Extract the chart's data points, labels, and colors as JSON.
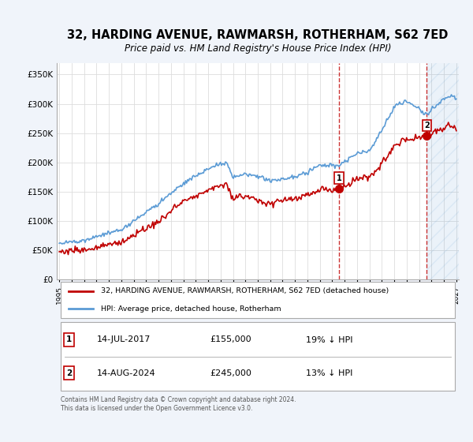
{
  "title": "32, HARDING AVENUE, RAWMARSH, ROTHERHAM, S62 7ED",
  "subtitle": "Price paid vs. HM Land Registry's House Price Index (HPI)",
  "footnote": "Contains HM Land Registry data © Crown copyright and database right 2024.\nThis data is licensed under the Open Government Licence v3.0.",
  "legend_line1": "32, HARDING AVENUE, RAWMARSH, ROTHERHAM, S62 7ED (detached house)",
  "legend_line2": "HPI: Average price, detached house, Rotherham",
  "sale1_date": "14-JUL-2017",
  "sale1_price": "£155,000",
  "sale1_detail": "19% ↓ HPI",
  "sale2_date": "14-AUG-2024",
  "sale2_price": "£245,000",
  "sale2_detail": "13% ↓ HPI",
  "hpi_color": "#5b9bd5",
  "price_color": "#c00000",
  "vline_color": "#c00000",
  "ylim": [
    0,
    370000
  ],
  "yticks": [
    0,
    50000,
    100000,
    150000,
    200000,
    250000,
    300000,
    350000
  ],
  "ytick_labels": [
    "£0",
    "£50K",
    "£100K",
    "£150K",
    "£200K",
    "£250K",
    "£300K",
    "£350K"
  ],
  "bg_color": "#f0f4fa",
  "plot_bg": "#ffffff"
}
